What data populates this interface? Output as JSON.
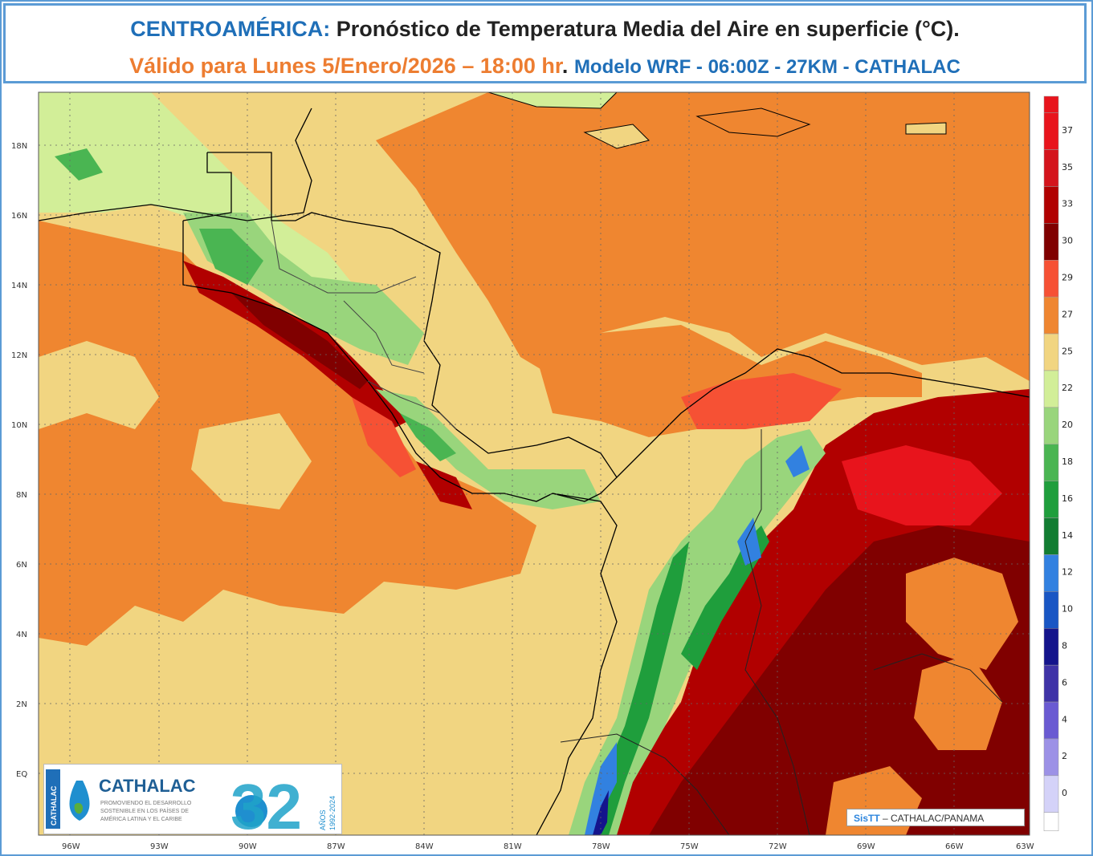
{
  "title": {
    "region": "CENTROAMÉRICA:",
    "main": "Pronóstico de Temperatura Media del Aire en superficie (°C).",
    "valid": "Válido para Lunes 5/Enero/2026 – 18:00 hr",
    "dot": ".",
    "model": "Modelo WRF - 06:00Z - 27KM - CATHALAC"
  },
  "map": {
    "lat_labels": [
      "18N",
      "16N",
      "14N",
      "12N",
      "10N",
      "8N",
      "6N",
      "4N",
      "2N",
      "EQ"
    ],
    "lon_labels": [
      "96W",
      "93W",
      "90W",
      "87W",
      "84W",
      "81W",
      "78W",
      "75W",
      "72W",
      "69W",
      "66W",
      "63W"
    ]
  },
  "legend": {
    "labels": [
      "37",
      "35",
      "33",
      "30",
      "29",
      "27",
      "25",
      "22",
      "20",
      "18",
      "16",
      "14",
      "12",
      "10",
      "8",
      "6",
      "4",
      "2",
      "0"
    ],
    "colors": [
      "#e8141c",
      "#d4141c",
      "#b10000",
      "#800000",
      "#f65134",
      "#ef8630",
      "#f1d581",
      "#d2ee98",
      "#99d57c",
      "#4ab552",
      "#1f9e3c",
      "#127d32",
      "#3281e0",
      "#1956c4",
      "#14148c",
      "#3f33a7",
      "#6a5ad2",
      "#9c91e6",
      "#d4d2f8"
    ]
  },
  "logo": {
    "name": "CATHALAC",
    "tagline1": "PROMOVIENDO EL DESARROLLO",
    "tagline2": "SOSTENIBLE EN LOS PAÍSES DE",
    "tagline3": "AMÉRICA LATINA Y EL CARIBE",
    "years": "32",
    "anos": "AÑOS",
    "range": "1992-2024",
    "side": "CATHALAC"
  },
  "credit": {
    "sis": "SisTT",
    "rest": " – CATHALAC/PANAMA"
  }
}
